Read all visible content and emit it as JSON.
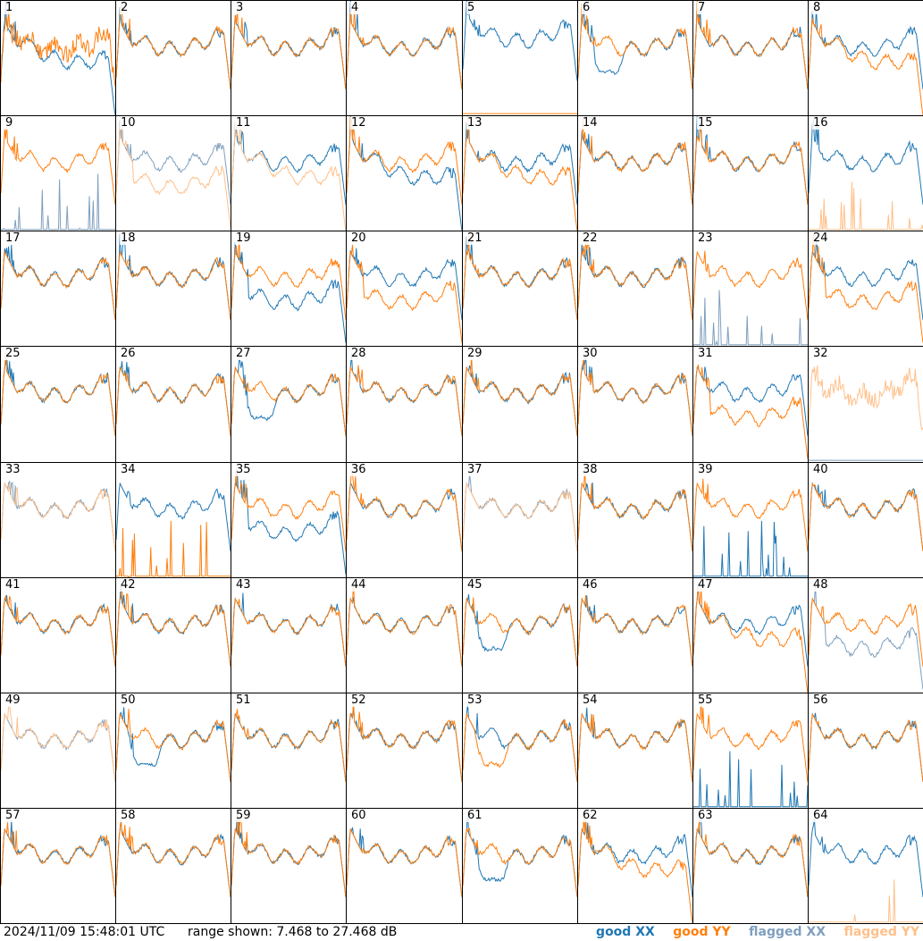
{
  "footer": {
    "timestamp": "2024/11/09 15:48:01 UTC",
    "range_text": "range shown: 7.468 to 27.468 dB"
  },
  "legend": [
    {
      "label": "good XX",
      "color": "#1f77b4"
    },
    {
      "label": "good YY",
      "color": "#ff7f0e"
    },
    {
      "label": "flagged XX",
      "color": "#7f9fbf"
    },
    {
      "label": "flagged YY",
      "color": "#ffc08a"
    }
  ],
  "chart_data": {
    "type": "line",
    "ylim": [
      7.468,
      27.468
    ],
    "y_unit": "dB",
    "layout": "8x8 grid of per-tile bandpass spectra",
    "series_colors": {
      "good_xx": "#1f77b4",
      "good_yy": "#ff7f0e",
      "flagged_xx": "#7f9fbf",
      "flagged_yy": "#ffc08a"
    },
    "tiles": [
      {
        "id": 1,
        "xx": "good",
        "yy": "good",
        "xx_shape": "droop",
        "yy_shape": "ripple"
      },
      {
        "id": 2,
        "xx": "good",
        "yy": "good",
        "xx_shape": "normal",
        "yy_shape": "normal"
      },
      {
        "id": 3,
        "xx": "good",
        "yy": "good",
        "xx_shape": "normal",
        "yy_shape": "normal"
      },
      {
        "id": 4,
        "xx": "good",
        "yy": "good",
        "xx_shape": "normal",
        "yy_shape": "normal"
      },
      {
        "id": 5,
        "xx": "good",
        "yy": "good",
        "xx_shape": "high",
        "yy_shape": "flat_low"
      },
      {
        "id": 6,
        "xx": "good",
        "yy": "good",
        "xx_shape": "dip",
        "yy_shape": "normal"
      },
      {
        "id": 7,
        "xx": "good",
        "yy": "good",
        "xx_shape": "normal",
        "yy_shape": "normal"
      },
      {
        "id": 8,
        "xx": "good",
        "yy": "good",
        "xx_shape": "normal",
        "yy_shape": "droop"
      },
      {
        "id": 9,
        "xx": "flagged",
        "yy": "good",
        "xx_shape": "spikes",
        "yy_shape": "normal"
      },
      {
        "id": 10,
        "xx": "flagged",
        "yy": "flagged",
        "xx_shape": "normal",
        "yy_shape": "low"
      },
      {
        "id": 11,
        "xx": "good",
        "yy": "flagged",
        "xx_shape": "normal",
        "yy_shape": "droop"
      },
      {
        "id": 12,
        "xx": "good",
        "yy": "good",
        "xx_shape": "droop",
        "yy_shape": "normal"
      },
      {
        "id": 13,
        "xx": "good",
        "yy": "good",
        "xx_shape": "normal",
        "yy_shape": "droop"
      },
      {
        "id": 14,
        "xx": "good",
        "yy": "good",
        "xx_shape": "normal",
        "yy_shape": "normal"
      },
      {
        "id": 15,
        "xx": "good",
        "yy": "good",
        "xx_shape": "normal",
        "yy_shape": "normal"
      },
      {
        "id": 16,
        "xx": "good",
        "yy": "flagged",
        "xx_shape": "normal",
        "yy_shape": "spikes"
      },
      {
        "id": 17,
        "xx": "good",
        "yy": "good",
        "xx_shape": "normal",
        "yy_shape": "normal"
      },
      {
        "id": 18,
        "xx": "good",
        "yy": "good",
        "xx_shape": "normal",
        "yy_shape": "normal"
      },
      {
        "id": 19,
        "xx": "good",
        "yy": "good",
        "xx_shape": "low",
        "yy_shape": "normal"
      },
      {
        "id": 20,
        "xx": "good",
        "yy": "good",
        "xx_shape": "normal",
        "yy_shape": "low"
      },
      {
        "id": 21,
        "xx": "good",
        "yy": "good",
        "xx_shape": "normal",
        "yy_shape": "normal"
      },
      {
        "id": 22,
        "xx": "good",
        "yy": "good",
        "xx_shape": "normal",
        "yy_shape": "normal"
      },
      {
        "id": 23,
        "xx": "flagged",
        "yy": "good",
        "xx_shape": "spikes",
        "yy_shape": "normal"
      },
      {
        "id": 24,
        "xx": "good",
        "yy": "good",
        "xx_shape": "normal",
        "yy_shape": "low"
      },
      {
        "id": 25,
        "xx": "good",
        "yy": "good",
        "xx_shape": "normal",
        "yy_shape": "normal"
      },
      {
        "id": 26,
        "xx": "good",
        "yy": "good",
        "xx_shape": "normal",
        "yy_shape": "normal"
      },
      {
        "id": 27,
        "xx": "good",
        "yy": "good",
        "xx_shape": "dip",
        "yy_shape": "normal"
      },
      {
        "id": 28,
        "xx": "good",
        "yy": "good",
        "xx_shape": "normal",
        "yy_shape": "normal"
      },
      {
        "id": 29,
        "xx": "good",
        "yy": "good",
        "xx_shape": "normal",
        "yy_shape": "normal"
      },
      {
        "id": 30,
        "xx": "good",
        "yy": "good",
        "xx_shape": "normal",
        "yy_shape": "normal"
      },
      {
        "id": 31,
        "xx": "good",
        "yy": "good",
        "xx_shape": "normal",
        "yy_shape": "low"
      },
      {
        "id": 32,
        "xx": "flagged",
        "yy": "flagged",
        "xx_shape": "flat_low",
        "yy_shape": "ripple"
      },
      {
        "id": 33,
        "xx": "flagged",
        "yy": "flagged",
        "xx_shape": "normal",
        "yy_shape": "normal"
      },
      {
        "id": 34,
        "xx": "good",
        "yy": "good",
        "xx_shape": "normal",
        "yy_shape": "spikes"
      },
      {
        "id": 35,
        "xx": "good",
        "yy": "good",
        "xx_shape": "low",
        "yy_shape": "normal"
      },
      {
        "id": 36,
        "xx": "good",
        "yy": "good",
        "xx_shape": "normal",
        "yy_shape": "normal"
      },
      {
        "id": 37,
        "xx": "flagged",
        "yy": "flagged",
        "xx_shape": "normal",
        "yy_shape": "normal"
      },
      {
        "id": 38,
        "xx": "good",
        "yy": "good",
        "xx_shape": "normal",
        "yy_shape": "normal"
      },
      {
        "id": 39,
        "xx": "good",
        "yy": "good",
        "xx_shape": "spikes",
        "yy_shape": "normal"
      },
      {
        "id": 40,
        "xx": "good",
        "yy": "good",
        "xx_shape": "normal",
        "yy_shape": "normal"
      },
      {
        "id": 41,
        "xx": "good",
        "yy": "good",
        "xx_shape": "normal",
        "yy_shape": "normal"
      },
      {
        "id": 42,
        "xx": "good",
        "yy": "good",
        "xx_shape": "normal",
        "yy_shape": "normal"
      },
      {
        "id": 43,
        "xx": "good",
        "yy": "good",
        "xx_shape": "normal",
        "yy_shape": "normal"
      },
      {
        "id": 44,
        "xx": "good",
        "yy": "good",
        "xx_shape": "normal",
        "yy_shape": "normal"
      },
      {
        "id": 45,
        "xx": "good",
        "yy": "good",
        "xx_shape": "dip",
        "yy_shape": "normal"
      },
      {
        "id": 46,
        "xx": "good",
        "yy": "good",
        "xx_shape": "normal",
        "yy_shape": "normal"
      },
      {
        "id": 47,
        "xx": "good",
        "yy": "good",
        "xx_shape": "normal",
        "yy_shape": "droop"
      },
      {
        "id": 48,
        "xx": "flagged",
        "yy": "good",
        "xx_shape": "low",
        "yy_shape": "normal"
      },
      {
        "id": 49,
        "xx": "flagged",
        "yy": "flagged",
        "xx_shape": "normal",
        "yy_shape": "normal"
      },
      {
        "id": 50,
        "xx": "good",
        "yy": "good",
        "xx_shape": "dip",
        "yy_shape": "normal"
      },
      {
        "id": 51,
        "xx": "good",
        "yy": "good",
        "xx_shape": "normal",
        "yy_shape": "normal"
      },
      {
        "id": 52,
        "xx": "good",
        "yy": "good",
        "xx_shape": "normal",
        "yy_shape": "normal"
      },
      {
        "id": 53,
        "xx": "good",
        "yy": "good",
        "xx_shape": "normal",
        "yy_shape": "dip"
      },
      {
        "id": 54,
        "xx": "good",
        "yy": "good",
        "xx_shape": "normal",
        "yy_shape": "normal"
      },
      {
        "id": 55,
        "xx": "good",
        "yy": "good",
        "xx_shape": "spikes",
        "yy_shape": "normal"
      },
      {
        "id": 56,
        "xx": "good",
        "yy": "good",
        "xx_shape": "normal",
        "yy_shape": "normal"
      },
      {
        "id": 57,
        "xx": "good",
        "yy": "good",
        "xx_shape": "normal",
        "yy_shape": "normal"
      },
      {
        "id": 58,
        "xx": "good",
        "yy": "good",
        "xx_shape": "normal",
        "yy_shape": "normal"
      },
      {
        "id": 59,
        "xx": "good",
        "yy": "good",
        "xx_shape": "normal",
        "yy_shape": "normal"
      },
      {
        "id": 60,
        "xx": "good",
        "yy": "good",
        "xx_shape": "normal",
        "yy_shape": "normal"
      },
      {
        "id": 61,
        "xx": "good",
        "yy": "good",
        "xx_shape": "dip",
        "yy_shape": "normal"
      },
      {
        "id": 62,
        "xx": "good",
        "yy": "good",
        "xx_shape": "normal",
        "yy_shape": "droop"
      },
      {
        "id": 63,
        "xx": "good",
        "yy": "good",
        "xx_shape": "normal",
        "yy_shape": "normal"
      },
      {
        "id": 64,
        "xx": "good",
        "yy": "flagged",
        "xx_shape": "normal",
        "yy_shape": "spikes"
      }
    ]
  }
}
